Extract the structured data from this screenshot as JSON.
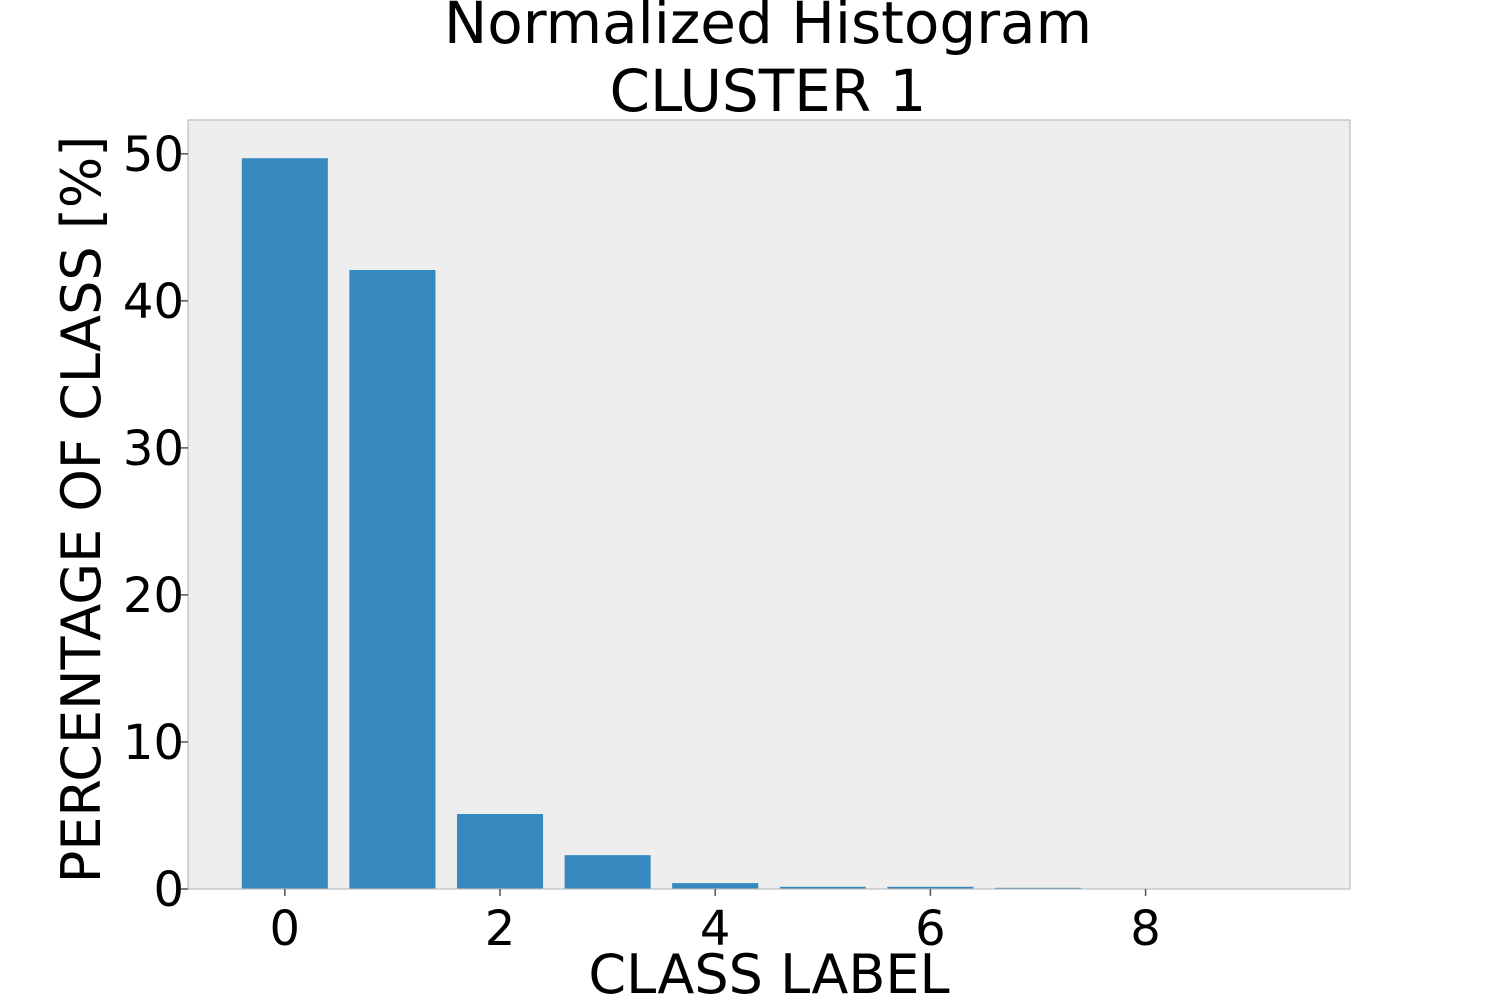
{
  "chart_data": {
    "type": "bar",
    "title": "Normalized Histogram",
    "subtitle": "CLUSTER 1",
    "xlabel": "CLASS LABEL",
    "ylabel": "PERCENTAGE OF CLASS [%]",
    "categories": [
      0,
      1,
      2,
      3,
      4,
      5,
      6,
      7,
      8
    ],
    "values": [
      49.7,
      42.1,
      5.1,
      2.3,
      0.4,
      0.15,
      0.15,
      0.08,
      0.0
    ],
    "xlim": [
      -0.9,
      9.9
    ],
    "ylim": [
      0,
      52.3
    ],
    "xticks": [
      0,
      2,
      4,
      6,
      8
    ],
    "yticks": [
      0,
      10,
      20,
      30,
      40,
      50
    ],
    "grid": false,
    "legend": "none",
    "colors": {
      "bar": "#3689bf",
      "plot_background": "#eeeeee",
      "frame": "#bcbcbc"
    }
  }
}
